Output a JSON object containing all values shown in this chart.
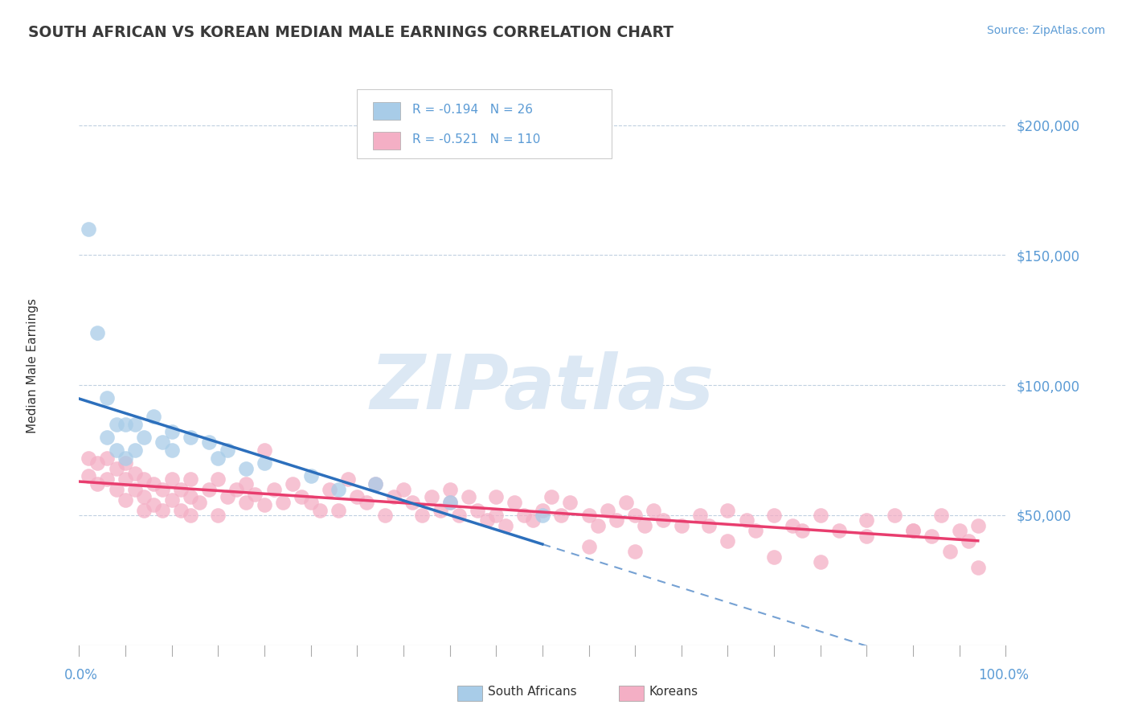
{
  "title": "SOUTH AFRICAN VS KOREAN MEDIAN MALE EARNINGS CORRELATION CHART",
  "source": "Source: ZipAtlas.com",
  "ylabel": "Median Male Earnings",
  "y_ticks": [
    0,
    50000,
    100000,
    150000,
    200000
  ],
  "y_tick_labels": [
    "",
    "$50,000",
    "$100,000",
    "$150,000",
    "$200,000"
  ],
  "xlim": [
    0,
    1
  ],
  "ylim": [
    0,
    215000
  ],
  "sa_R": -0.194,
  "sa_N": 26,
  "ko_R": -0.521,
  "ko_N": 110,
  "sa_color": "#a8cce8",
  "ko_color": "#f4afc5",
  "sa_line_color": "#2c6fbc",
  "ko_line_color": "#e83d6e",
  "bg_color": "#ffffff",
  "grid_color": "#c0d0e0",
  "tick_label_color": "#5b9bd5",
  "title_color": "#3a3a3a",
  "legend_text_color": "#5b9bd5",
  "watermark_color": "#dce8f4",
  "axis_label_color": "#333333",
  "sa_x": [
    0.01,
    0.02,
    0.03,
    0.03,
    0.04,
    0.04,
    0.05,
    0.05,
    0.06,
    0.06,
    0.07,
    0.08,
    0.09,
    0.1,
    0.1,
    0.12,
    0.14,
    0.15,
    0.16,
    0.18,
    0.2,
    0.25,
    0.28,
    0.32,
    0.4,
    0.5
  ],
  "sa_y": [
    160000,
    120000,
    95000,
    80000,
    85000,
    75000,
    85000,
    72000,
    85000,
    75000,
    80000,
    88000,
    78000,
    82000,
    75000,
    80000,
    78000,
    72000,
    75000,
    68000,
    70000,
    65000,
    60000,
    62000,
    55000,
    50000
  ],
  "ko_x": [
    0.01,
    0.01,
    0.02,
    0.02,
    0.03,
    0.03,
    0.04,
    0.04,
    0.05,
    0.05,
    0.05,
    0.06,
    0.06,
    0.07,
    0.07,
    0.07,
    0.08,
    0.08,
    0.09,
    0.09,
    0.1,
    0.1,
    0.11,
    0.11,
    0.12,
    0.12,
    0.12,
    0.13,
    0.14,
    0.15,
    0.15,
    0.16,
    0.17,
    0.18,
    0.18,
    0.19,
    0.2,
    0.21,
    0.22,
    0.23,
    0.24,
    0.25,
    0.26,
    0.27,
    0.28,
    0.29,
    0.3,
    0.31,
    0.32,
    0.33,
    0.34,
    0.35,
    0.36,
    0.37,
    0.38,
    0.39,
    0.4,
    0.4,
    0.41,
    0.42,
    0.43,
    0.44,
    0.45,
    0.45,
    0.46,
    0.47,
    0.48,
    0.49,
    0.5,
    0.51,
    0.52,
    0.53,
    0.55,
    0.56,
    0.57,
    0.58,
    0.59,
    0.6,
    0.61,
    0.62,
    0.63,
    0.65,
    0.67,
    0.68,
    0.7,
    0.72,
    0.73,
    0.75,
    0.77,
    0.78,
    0.8,
    0.82,
    0.85,
    0.88,
    0.9,
    0.92,
    0.93,
    0.95,
    0.96,
    0.97,
    0.55,
    0.6,
    0.7,
    0.75,
    0.8,
    0.85,
    0.9,
    0.94,
    0.97,
    0.2
  ],
  "ko_y": [
    72000,
    65000,
    70000,
    62000,
    72000,
    64000,
    68000,
    60000,
    70000,
    64000,
    56000,
    66000,
    60000,
    64000,
    57000,
    52000,
    62000,
    54000,
    60000,
    52000,
    64000,
    56000,
    60000,
    52000,
    64000,
    57000,
    50000,
    55000,
    60000,
    64000,
    50000,
    57000,
    60000,
    55000,
    62000,
    58000,
    54000,
    60000,
    55000,
    62000,
    57000,
    55000,
    52000,
    60000,
    52000,
    64000,
    57000,
    55000,
    62000,
    50000,
    57000,
    60000,
    55000,
    50000,
    57000,
    52000,
    60000,
    55000,
    50000,
    57000,
    52000,
    48000,
    57000,
    50000,
    46000,
    55000,
    50000,
    48000,
    52000,
    57000,
    50000,
    55000,
    50000,
    46000,
    52000,
    48000,
    55000,
    50000,
    46000,
    52000,
    48000,
    46000,
    50000,
    46000,
    52000,
    48000,
    44000,
    50000,
    46000,
    44000,
    50000,
    44000,
    42000,
    50000,
    44000,
    42000,
    50000,
    44000,
    40000,
    46000,
    38000,
    36000,
    40000,
    34000,
    32000,
    48000,
    44000,
    36000,
    30000,
    75000
  ]
}
